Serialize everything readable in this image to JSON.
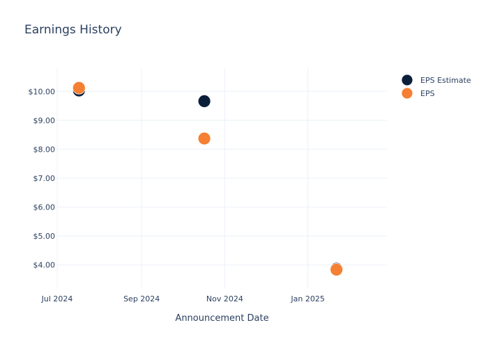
{
  "chart_data": {
    "type": "scatter",
    "title": "Earnings History",
    "xlabel": "Announcement Date",
    "ylabel": "",
    "x_ticks": [
      "Jul 2024",
      "Sep 2024",
      "Nov 2024",
      "Jan 2025"
    ],
    "y_ticks": [
      "$4.00",
      "$5.00",
      "$6.00",
      "$7.00",
      "$8.00",
      "$9.00",
      "$10.00"
    ],
    "x_tick_dates": [
      "2024-07-01",
      "2024-09-01",
      "2024-11-01",
      "2025-01-01"
    ],
    "xlim": [
      "2024-07-01",
      "2025-02-28"
    ],
    "ylim": [
      3.2,
      10.8
    ],
    "legend_position": "top-right",
    "grid": true,
    "series": [
      {
        "name": "EPS Estimate",
        "color": "#0b1f3a",
        "points": [
          {
            "x": "2024-07-17",
            "y": 10.03
          },
          {
            "x": "2024-10-17",
            "y": 9.66
          },
          {
            "x": "2025-01-22",
            "y": 3.87
          }
        ]
      },
      {
        "name": "EPS",
        "color": "#f57f32",
        "points": [
          {
            "x": "2024-07-17",
            "y": 10.12
          },
          {
            "x": "2024-10-17",
            "y": 8.37
          },
          {
            "x": "2025-01-22",
            "y": 3.84
          }
        ]
      }
    ]
  }
}
